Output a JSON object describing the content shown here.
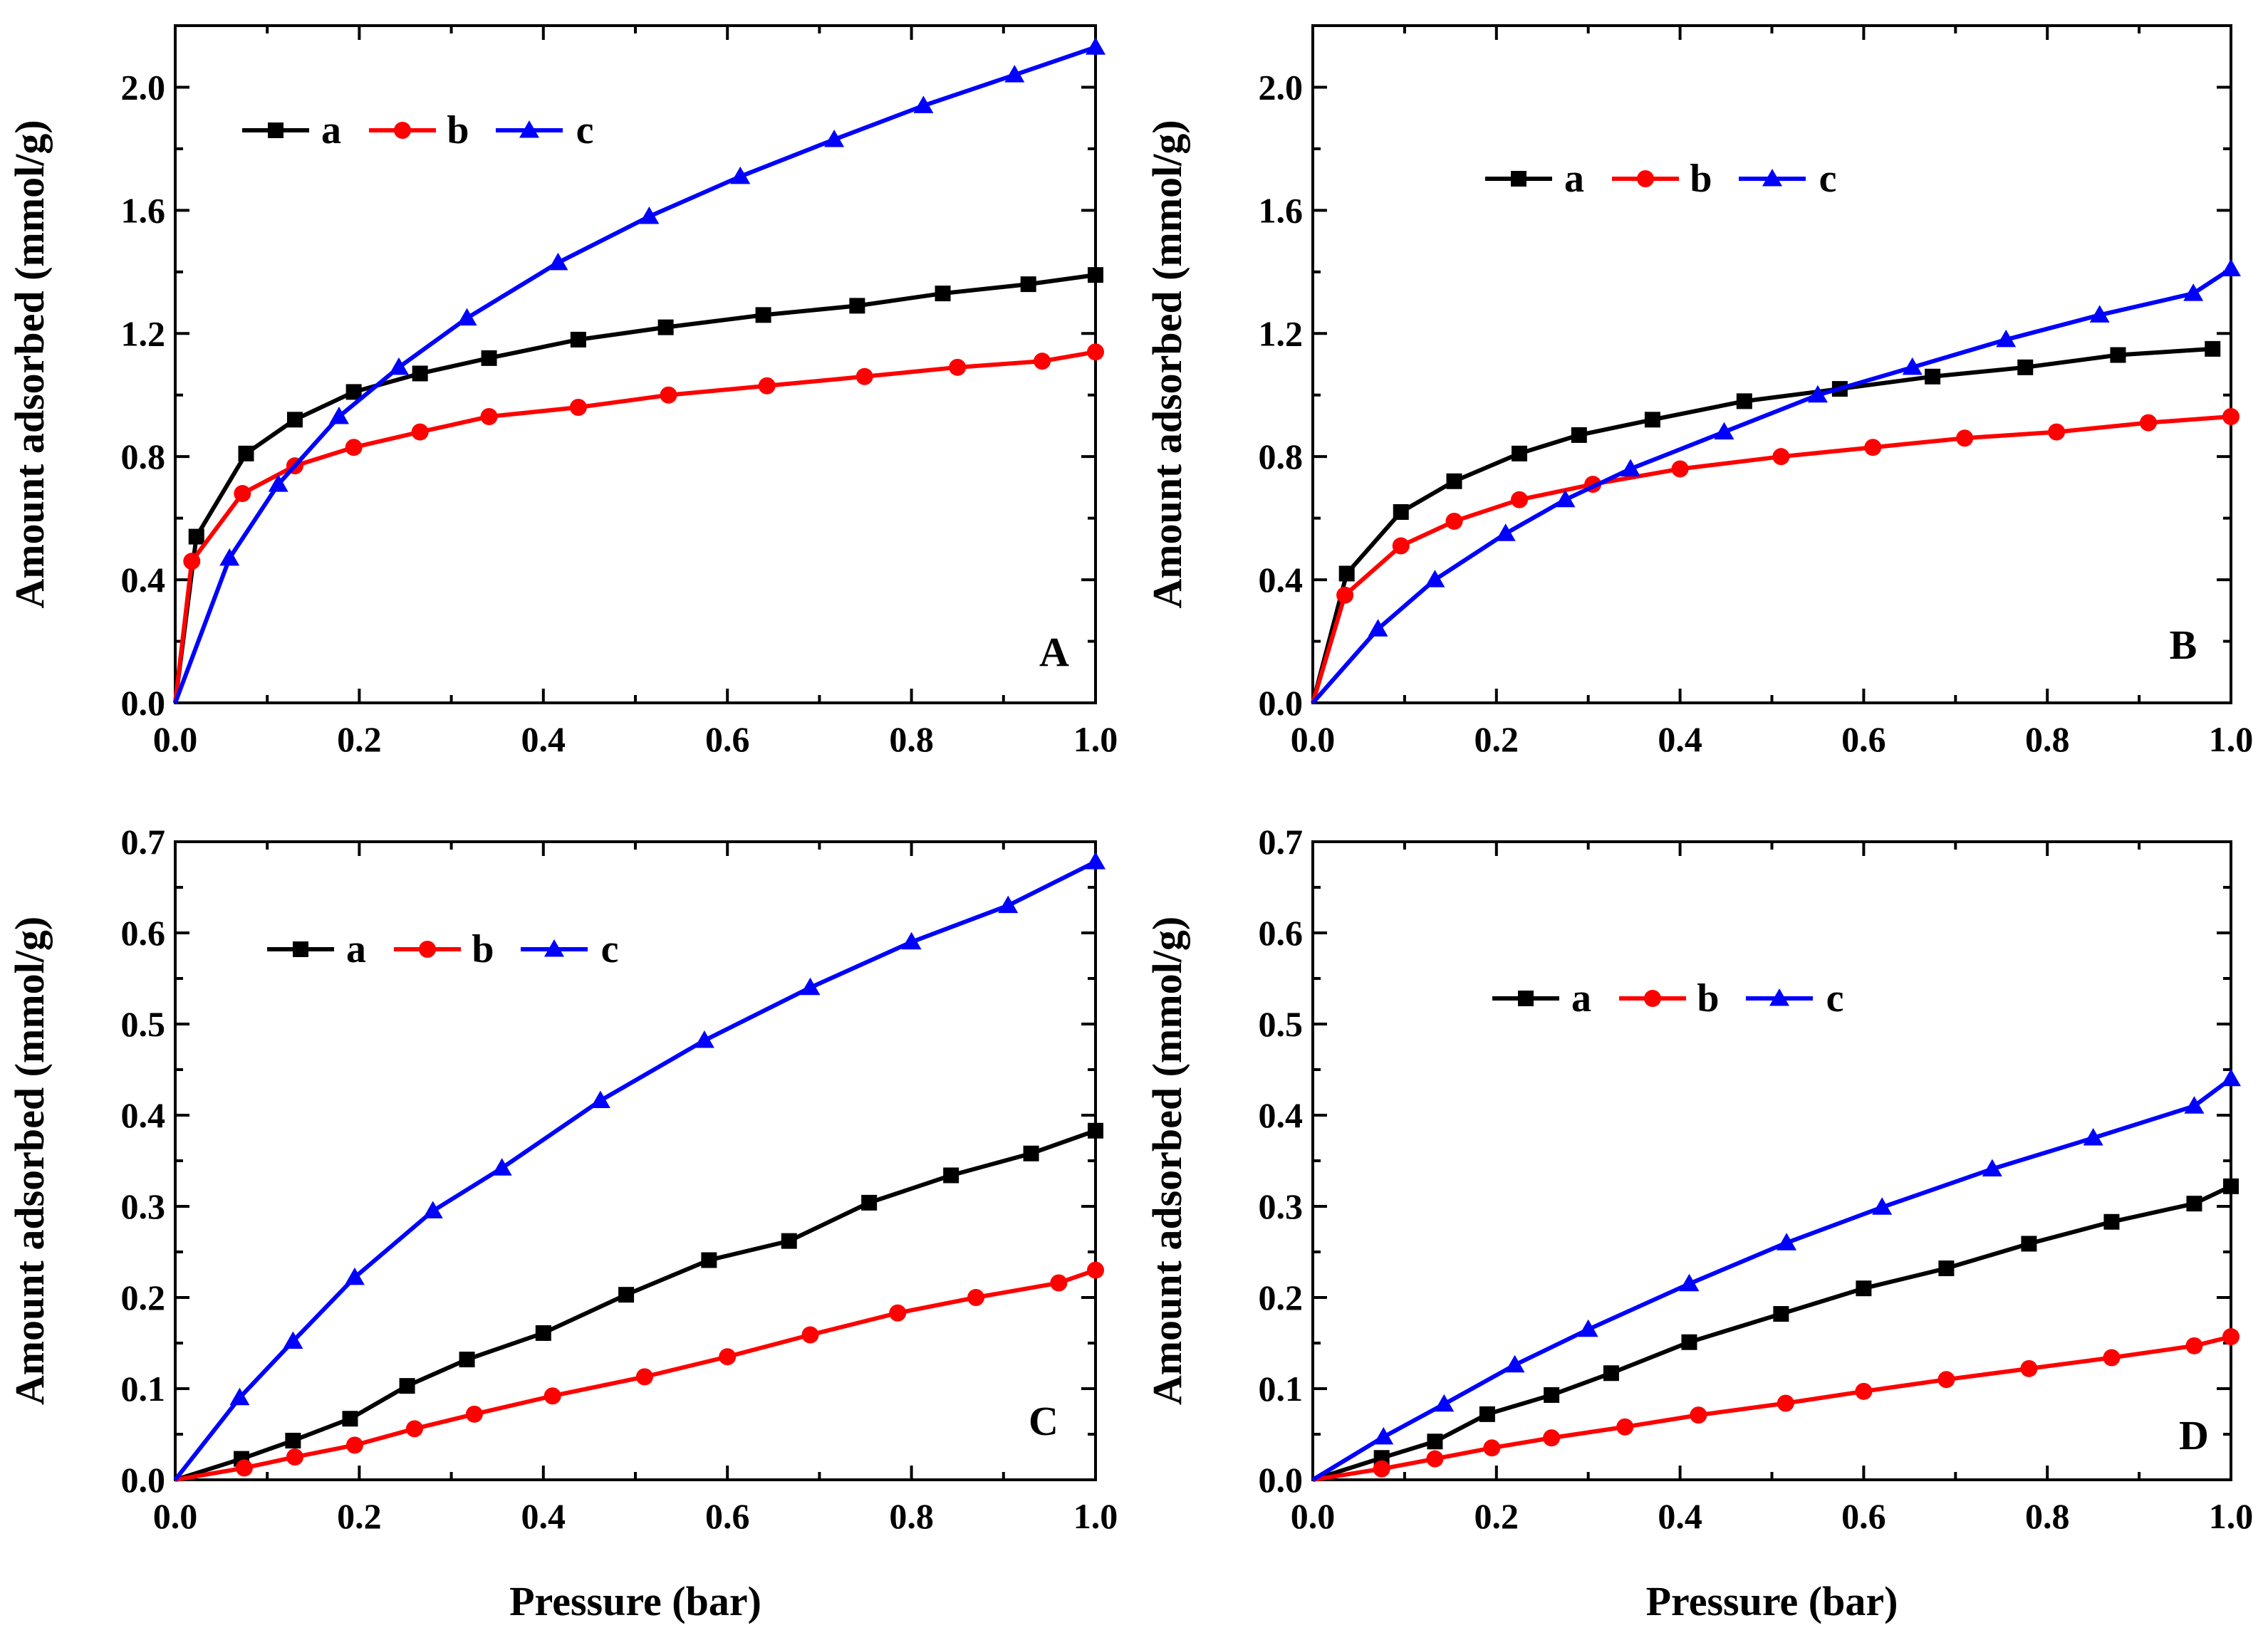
{
  "figure": {
    "colors": {
      "a": "#000000",
      "b": "#ff0000",
      "c": "#0000ff",
      "axis": "#000000"
    }
  },
  "chart_data": [
    {
      "panel": "A",
      "type": "line",
      "xlabel": "",
      "ylabel": "Amount adsorbed (mmol/g)",
      "xlim": [
        0,
        1.0
      ],
      "ylim": [
        0,
        2.2
      ],
      "xticks": [
        "0.0",
        "0.2",
        "0.4",
        "0.6",
        "0.8",
        "1.0"
      ],
      "yticks": [
        "0.0",
        "0.4",
        "0.8",
        "1.2",
        "1.6",
        "2.0"
      ],
      "legend_position": "top-left",
      "series": [
        {
          "name": "a",
          "color": "#000000",
          "marker": "square",
          "x": [
            0,
            0.023,
            0.077,
            0.13,
            0.194,
            0.266,
            0.341,
            0.438,
            0.533,
            0.639,
            0.741,
            0.834,
            0.927,
            1.0
          ],
          "y": [
            0,
            0.54,
            0.81,
            0.92,
            1.01,
            1.07,
            1.12,
            1.18,
            1.22,
            1.26,
            1.29,
            1.33,
            1.36,
            1.39
          ]
        },
        {
          "name": "b",
          "color": "#ff0000",
          "marker": "circle",
          "x": [
            0,
            0.018,
            0.073,
            0.13,
            0.194,
            0.266,
            0.341,
            0.438,
            0.536,
            0.643,
            0.749,
            0.85,
            0.942,
            1.0
          ],
          "y": [
            0,
            0.46,
            0.68,
            0.77,
            0.83,
            0.88,
            0.93,
            0.96,
            1.0,
            1.03,
            1.06,
            1.09,
            1.11,
            1.14
          ]
        },
        {
          "name": "c",
          "color": "#0000ff",
          "marker": "triangle",
          "x": [
            0,
            0.059,
            0.112,
            0.178,
            0.243,
            0.317,
            0.416,
            0.515,
            0.614,
            0.716,
            0.813,
            0.912,
            1.0
          ],
          "y": [
            0,
            0.47,
            0.71,
            0.93,
            1.09,
            1.25,
            1.43,
            1.58,
            1.71,
            1.83,
            1.94,
            2.04,
            2.13
          ]
        }
      ]
    },
    {
      "panel": "B",
      "type": "line",
      "xlabel": "",
      "ylabel": "Amount adsorbed (mmol/g)",
      "xlim": [
        0,
        1.0
      ],
      "ylim": [
        0,
        2.2
      ],
      "xticks": [
        "0.0",
        "0.2",
        "0.4",
        "0.6",
        "0.8",
        "1.0"
      ],
      "yticks": [
        "0.0",
        "0.4",
        "0.8",
        "1.2",
        "1.6",
        "2.0"
      ],
      "legend_position": "top-center",
      "series": [
        {
          "name": "a",
          "color": "#000000",
          "marker": "square",
          "x": [
            0,
            0.037,
            0.096,
            0.154,
            0.225,
            0.29,
            0.37,
            0.47,
            0.574,
            0.675,
            0.776,
            0.877,
            0.98
          ],
          "y": [
            0,
            0.42,
            0.62,
            0.72,
            0.81,
            0.87,
            0.92,
            0.98,
            1.02,
            1.06,
            1.09,
            1.13,
            1.15
          ]
        },
        {
          "name": "b",
          "color": "#ff0000",
          "marker": "circle",
          "x": [
            0,
            0.035,
            0.096,
            0.154,
            0.225,
            0.305,
            0.4,
            0.51,
            0.61,
            0.71,
            0.81,
            0.91,
            1.0
          ],
          "y": [
            0,
            0.35,
            0.51,
            0.59,
            0.66,
            0.71,
            0.76,
            0.8,
            0.83,
            0.86,
            0.88,
            0.91,
            0.93
          ]
        },
        {
          "name": "c",
          "color": "#0000ff",
          "marker": "triangle",
          "x": [
            0,
            0.071,
            0.133,
            0.21,
            0.275,
            0.346,
            0.448,
            0.55,
            0.653,
            0.755,
            0.857,
            0.959,
            1.0
          ],
          "y": [
            0,
            0.24,
            0.4,
            0.55,
            0.66,
            0.76,
            0.88,
            1.0,
            1.09,
            1.18,
            1.26,
            1.33,
            1.41
          ]
        }
      ]
    },
    {
      "panel": "C",
      "type": "line",
      "xlabel": "Pressure (bar)",
      "ylabel": "Amount adsorbed (mmol/g)",
      "xlim": [
        0,
        1.0
      ],
      "ylim": [
        0,
        0.7
      ],
      "xticks": [
        "0.0",
        "0.2",
        "0.4",
        "0.6",
        "0.8",
        "1.0"
      ],
      "yticks": [
        "0.0",
        "0.1",
        "0.2",
        "0.3",
        "0.4",
        "0.5",
        "0.6",
        "0.7"
      ],
      "legend_position": "top-left",
      "series": [
        {
          "name": "a",
          "color": "#000000",
          "marker": "square",
          "x": [
            0,
            0.072,
            0.128,
            0.19,
            0.252,
            0.317,
            0.4,
            0.49,
            0.58,
            0.667,
            0.754,
            0.843,
            0.93,
            1.0
          ],
          "y": [
            0,
            0.023,
            0.043,
            0.067,
            0.103,
            0.132,
            0.161,
            0.203,
            0.241,
            0.262,
            0.304,
            0.334,
            0.358,
            0.383
          ]
        },
        {
          "name": "b",
          "color": "#ff0000",
          "marker": "circle",
          "x": [
            0,
            0.075,
            0.13,
            0.195,
            0.26,
            0.325,
            0.41,
            0.51,
            0.6,
            0.69,
            0.785,
            0.87,
            0.96,
            1.0
          ],
          "y": [
            0,
            0.013,
            0.025,
            0.038,
            0.056,
            0.072,
            0.092,
            0.113,
            0.135,
            0.159,
            0.183,
            0.2,
            0.216,
            0.23
          ]
        },
        {
          "name": "c",
          "color": "#0000ff",
          "marker": "triangle",
          "x": [
            0,
            0.07,
            0.128,
            0.195,
            0.28,
            0.355,
            0.462,
            0.575,
            0.69,
            0.8,
            0.905,
            1.0
          ],
          "y": [
            0,
            0.09,
            0.152,
            0.222,
            0.295,
            0.342,
            0.416,
            0.482,
            0.54,
            0.59,
            0.63,
            0.678
          ]
        }
      ]
    },
    {
      "panel": "D",
      "type": "line",
      "xlabel": "Pressure (bar)",
      "ylabel": "Amount adsorbed (mmol/g)",
      "xlim": [
        0,
        1.0
      ],
      "ylim": [
        0,
        0.7
      ],
      "xticks": [
        "0.0",
        "0.2",
        "0.4",
        "0.6",
        "0.8",
        "1.0"
      ],
      "yticks": [
        "0.0",
        "0.1",
        "0.2",
        "0.3",
        "0.4",
        "0.5",
        "0.6",
        "0.7"
      ],
      "legend_position": "top-center",
      "series": [
        {
          "name": "a",
          "color": "#000000",
          "marker": "square",
          "x": [
            0,
            0.075,
            0.133,
            0.19,
            0.26,
            0.325,
            0.41,
            0.51,
            0.6,
            0.69,
            0.78,
            0.87,
            0.96,
            1.0
          ],
          "y": [
            0,
            0.024,
            0.042,
            0.072,
            0.093,
            0.117,
            0.151,
            0.182,
            0.21,
            0.232,
            0.259,
            0.283,
            0.303,
            0.322
          ]
        },
        {
          "name": "b",
          "color": "#ff0000",
          "marker": "circle",
          "x": [
            0,
            0.075,
            0.133,
            0.195,
            0.26,
            0.34,
            0.42,
            0.515,
            0.6,
            0.69,
            0.78,
            0.87,
            0.96,
            1.0
          ],
          "y": [
            0,
            0.012,
            0.023,
            0.035,
            0.046,
            0.058,
            0.071,
            0.084,
            0.097,
            0.11,
            0.122,
            0.134,
            0.147,
            0.157
          ]
        },
        {
          "name": "c",
          "color": "#0000ff",
          "marker": "triangle",
          "x": [
            0,
            0.077,
            0.143,
            0.22,
            0.3,
            0.41,
            0.516,
            0.62,
            0.74,
            0.85,
            0.96,
            1.0
          ],
          "y": [
            0,
            0.047,
            0.083,
            0.126,
            0.165,
            0.215,
            0.26,
            0.299,
            0.341,
            0.375,
            0.41,
            0.44
          ]
        }
      ]
    }
  ]
}
